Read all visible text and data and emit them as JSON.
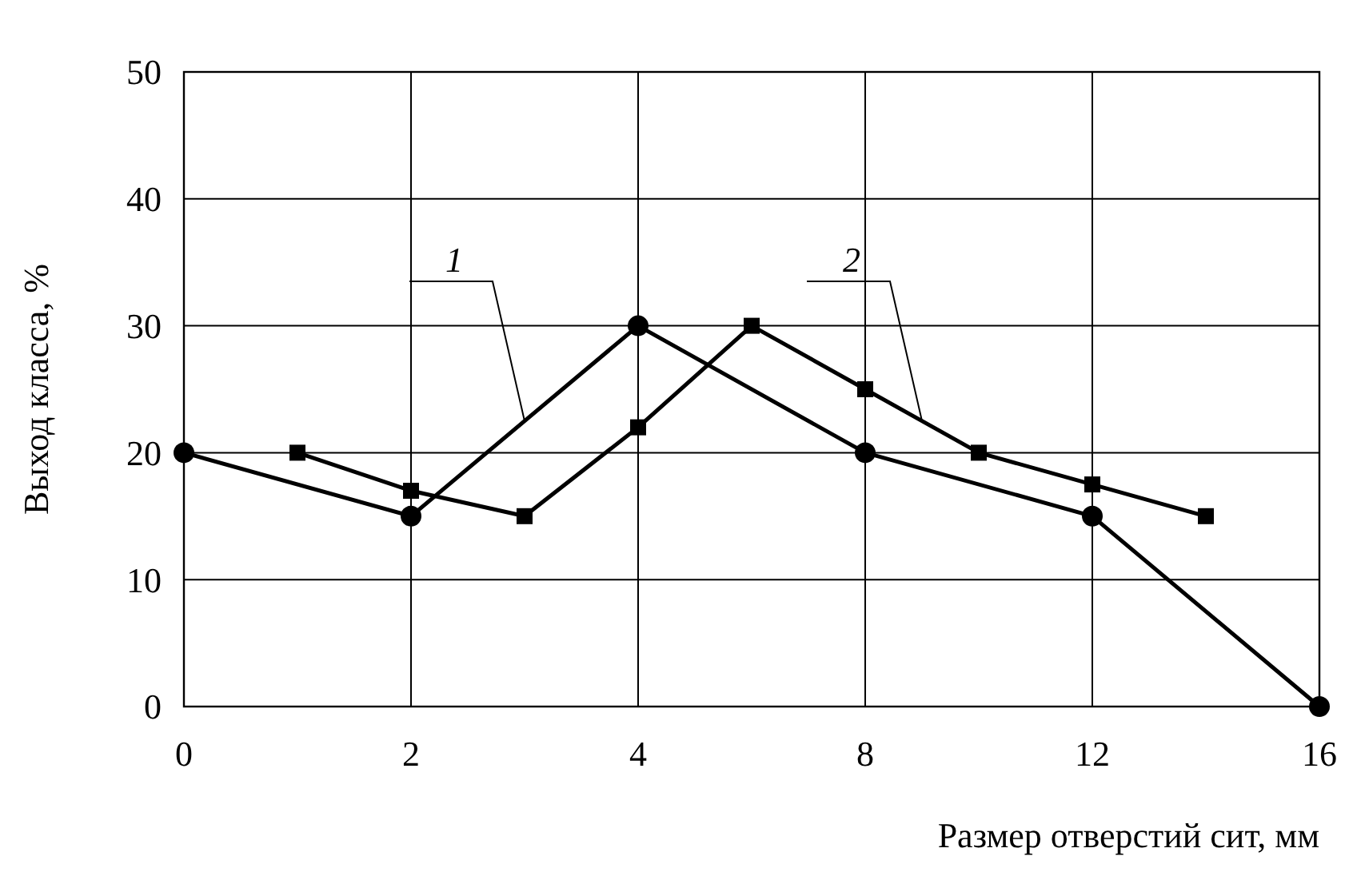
{
  "chart_data": {
    "type": "line",
    "xlabel": "Размер отверстий сит, мм",
    "ylabel": "Выход класса, %",
    "categories": [
      "0",
      null,
      "2",
      null,
      "4",
      null,
      "8",
      null,
      "12",
      null,
      "16"
    ],
    "series": [
      {
        "name": "1",
        "color": "#000000",
        "marker": "circle",
        "values": [
          20,
          null,
          15,
          null,
          30,
          null,
          20,
          null,
          15,
          null,
          0
        ]
      },
      {
        "name": "2",
        "color": "#000000",
        "marker": "square",
        "values": [
          null,
          20,
          17,
          15,
          22,
          30,
          25,
          20,
          17.5,
          15,
          null
        ]
      }
    ],
    "ylim": [
      0,
      50
    ],
    "yticks": [
      0,
      10,
      20,
      30,
      40,
      50
    ],
    "grid": true,
    "line_style": "solid"
  }
}
